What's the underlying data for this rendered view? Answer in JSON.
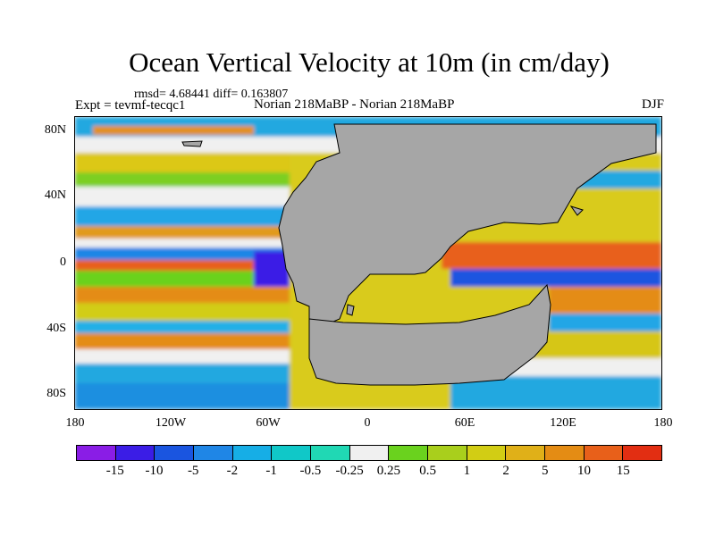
{
  "title": "Ocean Vertical Velocity at 10m (in cm/day)",
  "stats": "rmsd= 4.68441 diff= 0.163807",
  "experiment": "Expt = tevmf-tecqc1",
  "comparison": "Norian 218MaBP - Norian 218MaBP",
  "season": "DJF",
  "map": {
    "projection": "cylindrical equidistant",
    "land_color": "#a6a6a6",
    "lon_ticks": [
      "180",
      "120W",
      "60W",
      "0",
      "60E",
      "120E",
      "180"
    ],
    "lat_ticks": [
      "80N",
      "40N",
      "0",
      "40S",
      "80S"
    ]
  },
  "colorbar": {
    "colors": [
      "#8a1de6",
      "#3b1de6",
      "#1a55e0",
      "#1f86e6",
      "#16aee6",
      "#10c8c8",
      "#20d8b4",
      "#f0f0f0",
      "#6ad21e",
      "#a9cf1c",
      "#d2cd14",
      "#e0b018",
      "#e48c14",
      "#e8601a",
      "#e22e12"
    ],
    "labels": [
      "-15",
      "-10",
      "-5",
      "-2",
      "-1",
      "-0.5",
      "-0.25",
      "0.25",
      "0.5",
      "1",
      "2",
      "5",
      "10",
      "15"
    ]
  }
}
